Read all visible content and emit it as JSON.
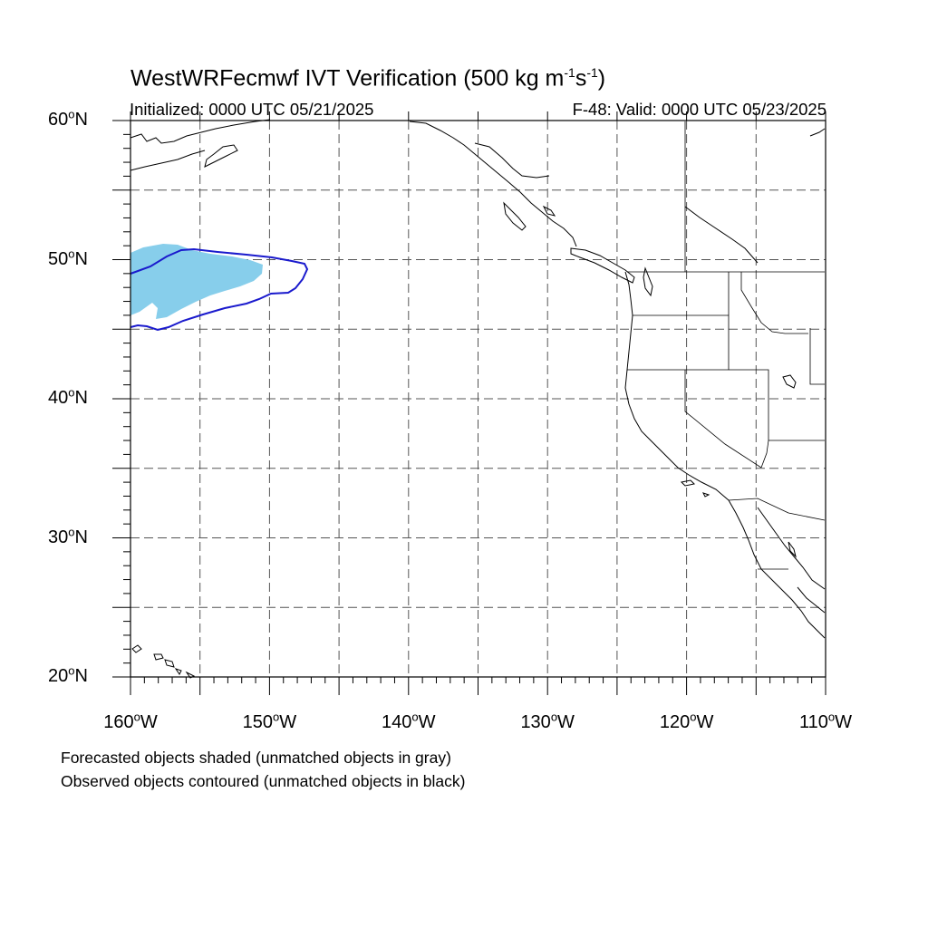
{
  "title": {
    "prefix": "WestWRFecmwf IVT Verification (500 kg m",
    "exp1": "-1",
    "mid": "s",
    "exp2": "-1",
    "suffix": ")"
  },
  "initialized": "Initialized: 0000 UTC 05/21/2025",
  "valid": "F-48: Valid: 0000 UTC 05/23/2025",
  "axes": {
    "lat_labels": [
      {
        "num": "60",
        "hemi": "N"
      },
      {
        "num": "50",
        "hemi": "N"
      },
      {
        "num": "40",
        "hemi": "N"
      },
      {
        "num": "30",
        "hemi": "N"
      },
      {
        "num": "20",
        "hemi": "N"
      }
    ],
    "lon_labels": [
      {
        "num": "160",
        "hemi": "W"
      },
      {
        "num": "150",
        "hemi": "W"
      },
      {
        "num": "140",
        "hemi": "W"
      },
      {
        "num": "130",
        "hemi": "W"
      },
      {
        "num": "120",
        "hemi": "W"
      },
      {
        "num": "110",
        "hemi": "W"
      }
    ],
    "lat_range": [
      20,
      60
    ],
    "lon_range": [
      -160,
      -110
    ],
    "grid_spacing_deg": 5
  },
  "legend": {
    "line1": "Forecasted objects shaded (unmatched objects in gray)",
    "line2": "Observed objects contoured (unmatched objects in black)"
  },
  "colors": {
    "forecast_fill": "#87ceeb",
    "observed_contour": "#1a1acd",
    "coastline": "#000000",
    "grid": "#555555"
  }
}
